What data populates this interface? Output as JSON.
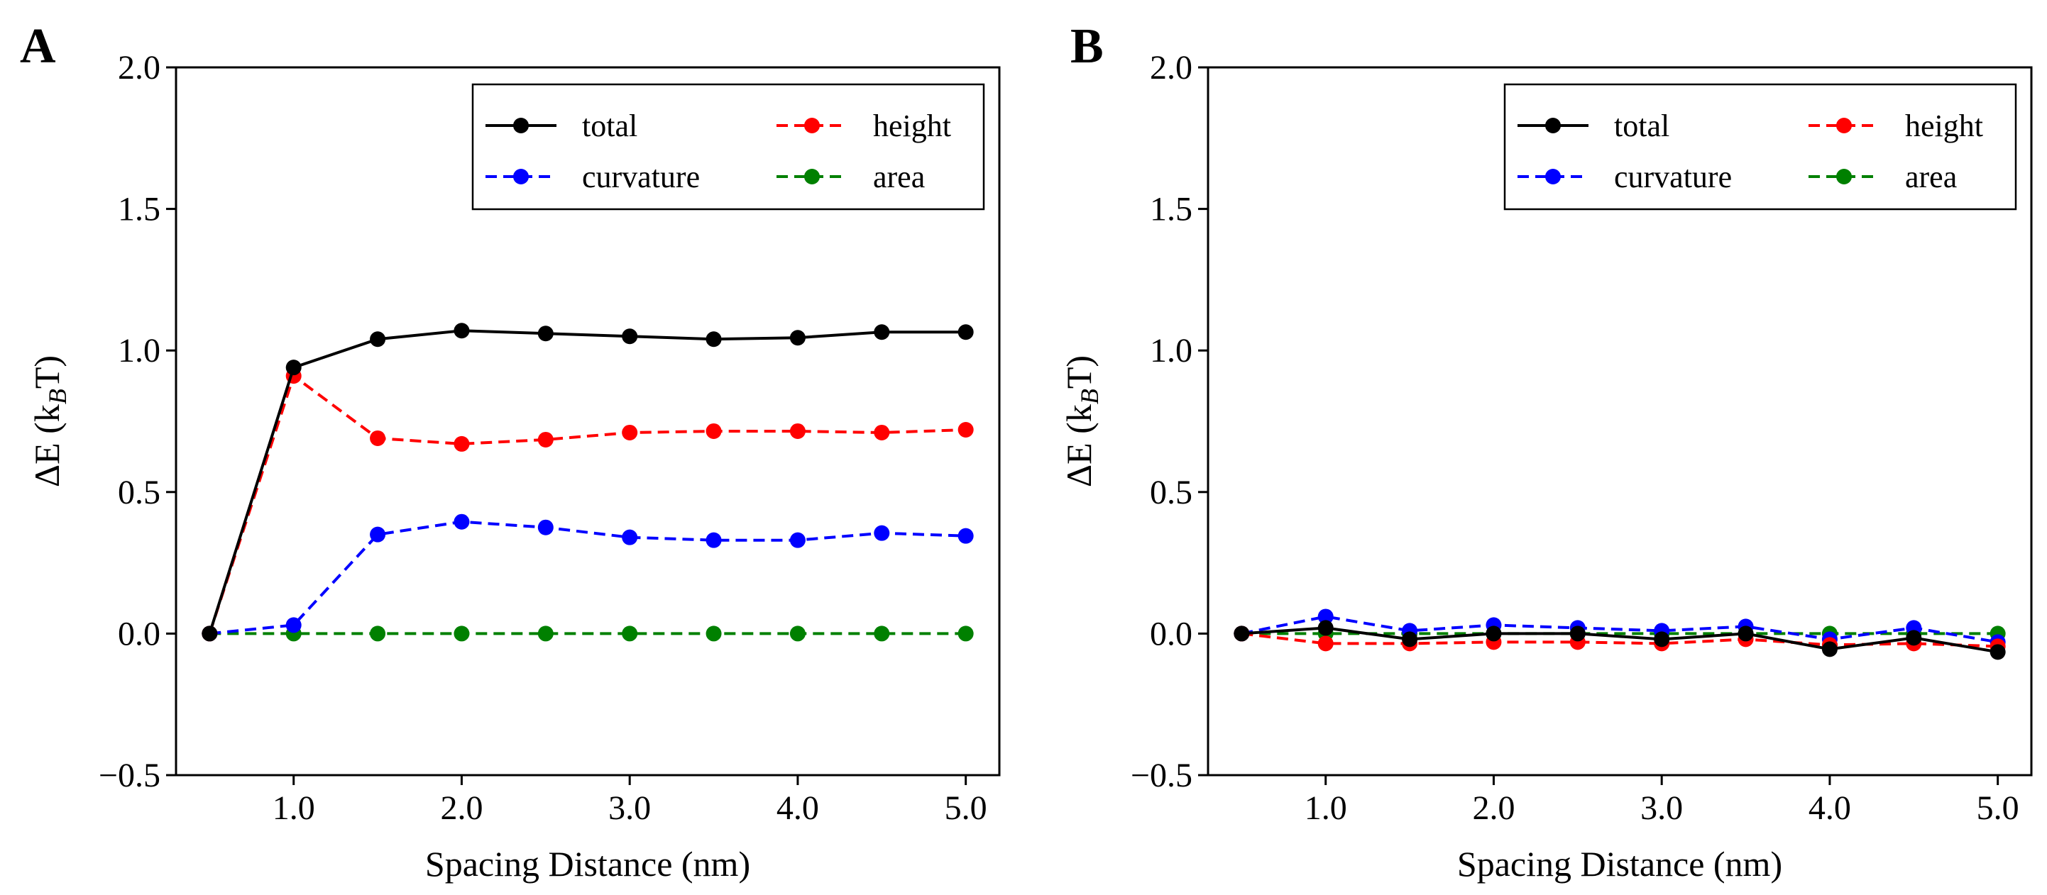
{
  "chart_data": [
    {
      "panel": "A",
      "type": "line",
      "xlabel": "Spacing Distance (nm)",
      "ylabel_main": "ΔE (k",
      "ylabel_sub": "B",
      "ylabel_tail": "T)",
      "xlim": [
        0.3,
        5.2
      ],
      "ylim": [
        -0.5,
        2.0
      ],
      "xticks": [
        1.0,
        2.0,
        3.0,
        4.0,
        5.0
      ],
      "xtick_labels": [
        "1.0",
        "2.0",
        "3.0",
        "4.0",
        "5.0"
      ],
      "yticks": [
        -0.5,
        0.0,
        0.5,
        1.0,
        1.5,
        2.0
      ],
      "ytick_labels": [
        "−0.5",
        "0.0",
        "0.5",
        "1.0",
        "1.5",
        "2.0"
      ],
      "legend_location": "top-right",
      "x": [
        0.5,
        1.0,
        1.5,
        2.0,
        2.5,
        3.0,
        3.5,
        4.0,
        4.5,
        5.0
      ],
      "series": [
        {
          "name": "total",
          "color": "#000000",
          "dashed": false,
          "values": [
            0.0,
            0.94,
            1.04,
            1.07,
            1.06,
            1.05,
            1.04,
            1.045,
            1.065,
            1.065
          ]
        },
        {
          "name": "height",
          "color": "#ff0000",
          "dashed": true,
          "values": [
            0.0,
            0.91,
            0.69,
            0.67,
            0.685,
            0.71,
            0.715,
            0.715,
            0.71,
            0.72
          ]
        },
        {
          "name": "curvature",
          "color": "#0000ff",
          "dashed": true,
          "values": [
            0.0,
            0.03,
            0.35,
            0.395,
            0.375,
            0.34,
            0.33,
            0.33,
            0.355,
            0.345
          ]
        },
        {
          "name": "area",
          "color": "#008000",
          "dashed": true,
          "values": [
            0.0,
            0.0,
            0.0,
            0.0,
            0.0,
            0.0,
            0.0,
            0.0,
            0.0,
            0.0
          ]
        }
      ]
    },
    {
      "panel": "B",
      "type": "line",
      "xlabel": "Spacing Distance (nm)",
      "ylabel_main": "ΔE (k",
      "ylabel_sub": "B",
      "ylabel_tail": "T)",
      "xlim": [
        0.3,
        5.2
      ],
      "ylim": [
        -0.5,
        2.0
      ],
      "xticks": [
        1.0,
        2.0,
        3.0,
        4.0,
        5.0
      ],
      "xtick_labels": [
        "1.0",
        "2.0",
        "3.0",
        "4.0",
        "5.0"
      ],
      "yticks": [
        -0.5,
        0.0,
        0.5,
        1.0,
        1.5,
        2.0
      ],
      "ytick_labels": [
        "−0.5",
        "0.0",
        "0.5",
        "1.0",
        "1.5",
        "2.0"
      ],
      "legend_location": "top-right",
      "x": [
        0.5,
        1.0,
        1.5,
        2.0,
        2.5,
        3.0,
        3.5,
        4.0,
        4.5,
        5.0
      ],
      "series": [
        {
          "name": "total",
          "color": "#000000",
          "dashed": false,
          "values": [
            0.0,
            0.02,
            -0.02,
            0.0,
            0.0,
            -0.02,
            0.0,
            -0.055,
            -0.015,
            -0.065
          ]
        },
        {
          "name": "height",
          "color": "#ff0000",
          "dashed": true,
          "values": [
            0.0,
            -0.035,
            -0.035,
            -0.03,
            -0.03,
            -0.035,
            -0.02,
            -0.04,
            -0.035,
            -0.045
          ]
        },
        {
          "name": "curvature",
          "color": "#0000ff",
          "dashed": true,
          "values": [
            0.0,
            0.06,
            0.01,
            0.03,
            0.02,
            0.01,
            0.025,
            -0.02,
            0.02,
            -0.03
          ]
        },
        {
          "name": "area",
          "color": "#008000",
          "dashed": true,
          "values": [
            0.0,
            0.0,
            0.0,
            0.0,
            0.0,
            0.0,
            0.0,
            0.0,
            0.0,
            0.0
          ]
        }
      ]
    }
  ]
}
